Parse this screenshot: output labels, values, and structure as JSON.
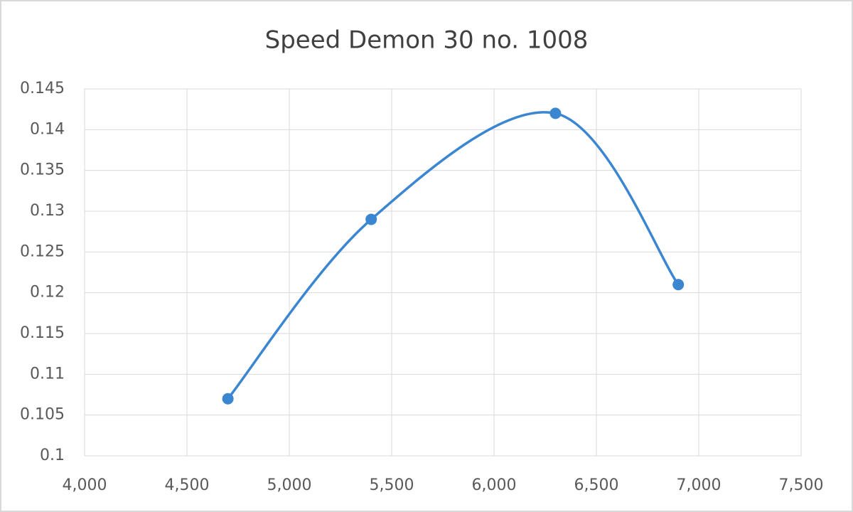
{
  "chart_data": {
    "type": "scatter",
    "title": "Speed Demon 30 no. 1008",
    "series": [
      {
        "color": "#3b86d0",
        "x": [
          4700,
          5400,
          6300,
          6900
        ],
        "values": [
          0.107,
          0.129,
          0.142,
          0.121
        ]
      }
    ],
    "smooth": true,
    "grid": true,
    "xlim": [
      4000,
      7500
    ],
    "xticks": [
      {
        "value": 4000,
        "label": "4,000"
      },
      {
        "value": 4500,
        "label": "4,500"
      },
      {
        "value": 5000,
        "label": "5,000"
      },
      {
        "value": 5500,
        "label": "5,500"
      },
      {
        "value": 6000,
        "label": "6,000"
      },
      {
        "value": 6500,
        "label": "6,500"
      },
      {
        "value": 7000,
        "label": "7,000"
      },
      {
        "value": 7500,
        "label": "7,500"
      }
    ],
    "ylim": [
      0.1,
      0.145
    ],
    "yticks": [
      0.1,
      0.105,
      0.11,
      0.115,
      0.12,
      0.125,
      0.13,
      0.135,
      0.14,
      0.145
    ]
  }
}
